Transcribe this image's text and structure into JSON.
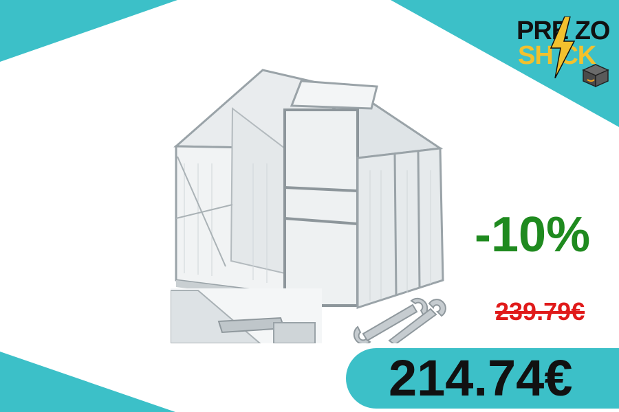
{
  "brand": {
    "logo_line1": "PRE ZO",
    "logo_line2": "SH CK",
    "logo_text": "PREZZO SHOCK"
  },
  "product": {
    "image_subject": "greenhouse-with-wrenches"
  },
  "offer": {
    "discount": "-10%",
    "old_price": "239.79€",
    "new_price": "214.74€"
  },
  "colors": {
    "accent_teal": "#3cc0c8",
    "discount_green": "#1f8a1f",
    "old_price_red": "#e01a1a",
    "logo_yellow": "#f2c12e"
  }
}
